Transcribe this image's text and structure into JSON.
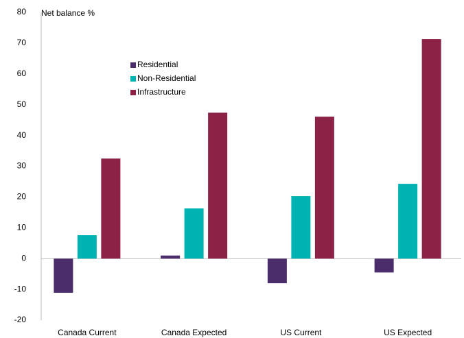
{
  "chart_data": {
    "type": "bar",
    "y_label": "Net balance %",
    "categories": [
      "Canada Current",
      "Canada Expected",
      "US Current",
      "US Expected"
    ],
    "series": [
      {
        "name": "Residential",
        "color": "#4b2d6b",
        "values": [
          -11.1,
          1,
          -8,
          -4.5
        ]
      },
      {
        "name": "Non-Residential",
        "color": "#00b3b3",
        "values": [
          7.6,
          16.3,
          20.3,
          24.3
        ]
      },
      {
        "name": "Infrastructure",
        "color": "#8c2245",
        "values": [
          32.5,
          47.4,
          46.1,
          71.3
        ]
      }
    ],
    "ylim": [
      -20,
      80
    ],
    "yticks": [
      -20,
      -10,
      0,
      10,
      20,
      30,
      40,
      50,
      60,
      70,
      80
    ],
    "legend": "upper left"
  }
}
